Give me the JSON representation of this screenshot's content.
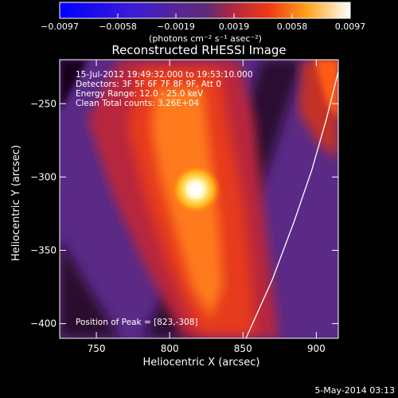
{
  "chart_data": {
    "type": "heatmap",
    "title": "Reconstructed RHESSI Image",
    "xlabel": "Heliocentric X (arcsec)",
    "ylabel": "Heliocentric Y (arcsec)",
    "xlim": [
      725,
      915
    ],
    "ylim": [
      -410,
      -220
    ],
    "xticks": [
      750,
      800,
      850,
      900
    ],
    "yticks": [
      -250,
      -300,
      -350,
      -400
    ],
    "colorbar": {
      "ticks": [
        "-0.0097",
        "-0.0058",
        "-0.0019",
        "0.0019",
        "0.0058",
        "0.0097"
      ],
      "min": -0.0097,
      "max": 0.0097,
      "units": "(photons cm⁻² s⁻¹ asec⁻²)"
    },
    "peak": {
      "x": 823,
      "y": -308
    },
    "annotations": [
      "15-Jul-2012 19:49:32.000 to 19:53:10.000",
      "Detectors: 3F 5F 6F 7F 8F 9F, Att 0",
      "Energy Range: 12.0 - 25.0 keV",
      "Clean    Total counts: 3.26E+04"
    ],
    "peak_label": "Position of Peak = [823,-308]",
    "limb_curve": [
      [
        852,
        -410
      ],
      [
        870,
        -370
      ],
      [
        885,
        -330
      ],
      [
        897,
        -295
      ],
      [
        907,
        -260
      ],
      [
        915,
        -228
      ]
    ]
  },
  "footer": {
    "date": "5-May-2014 03:13"
  }
}
